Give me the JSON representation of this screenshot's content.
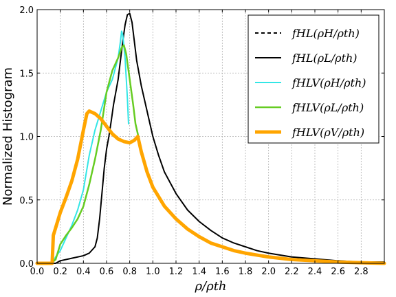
{
  "chart_data": {
    "type": "line",
    "ylabel": "Normalized Histogram",
    "xlabel": "ρ/ρth",
    "xlim": [
      0.0,
      3.0
    ],
    "ylim": [
      0.0,
      2.0
    ],
    "x_ticks": [
      "0.0",
      "0.2",
      "0.4",
      "0.6",
      "0.8",
      "1.0",
      "1.2",
      "1.4",
      "1.6",
      "1.8",
      "2.0",
      "2.2",
      "2.4",
      "2.6",
      "2.8"
    ],
    "y_ticks": [
      "0.0",
      "0.5",
      "1.0",
      "1.5",
      "2.0"
    ],
    "grid": true,
    "legend_position": "top-right",
    "series": [
      {
        "name": "fHL(ρH/ρth)",
        "color": "#000000",
        "style": "dashed",
        "width": 2,
        "points": []
      },
      {
        "name": "fHL(ρL/ρth)",
        "color": "#000000",
        "style": "solid",
        "width": 2,
        "points": [
          [
            0.12,
            0.0
          ],
          [
            0.16,
            0.0
          ],
          [
            0.2,
            0.02
          ],
          [
            0.3,
            0.04
          ],
          [
            0.4,
            0.06
          ],
          [
            0.45,
            0.08
          ],
          [
            0.5,
            0.13
          ],
          [
            0.52,
            0.2
          ],
          [
            0.54,
            0.35
          ],
          [
            0.56,
            0.55
          ],
          [
            0.58,
            0.75
          ],
          [
            0.6,
            0.9
          ],
          [
            0.62,
            1.0
          ],
          [
            0.64,
            1.12
          ],
          [
            0.66,
            1.25
          ],
          [
            0.7,
            1.45
          ],
          [
            0.72,
            1.6
          ],
          [
            0.74,
            1.75
          ],
          [
            0.76,
            1.88
          ],
          [
            0.78,
            1.96
          ],
          [
            0.8,
            1.97
          ],
          [
            0.82,
            1.9
          ],
          [
            0.84,
            1.75
          ],
          [
            0.86,
            1.6
          ],
          [
            0.9,
            1.4
          ],
          [
            0.95,
            1.2
          ],
          [
            1.0,
            1.0
          ],
          [
            1.05,
            0.85
          ],
          [
            1.1,
            0.72
          ],
          [
            1.2,
            0.55
          ],
          [
            1.3,
            0.42
          ],
          [
            1.4,
            0.33
          ],
          [
            1.5,
            0.26
          ],
          [
            1.6,
            0.2
          ],
          [
            1.7,
            0.16
          ],
          [
            1.8,
            0.13
          ],
          [
            1.9,
            0.1
          ],
          [
            2.0,
            0.08
          ],
          [
            2.2,
            0.05
          ],
          [
            2.4,
            0.035
          ],
          [
            2.6,
            0.02
          ],
          [
            2.8,
            0.01
          ],
          [
            3.0,
            0.01
          ]
        ]
      },
      {
        "name": "fHLV(ρH/ρth)",
        "color": "#33e6e6",
        "style": "solid",
        "width": 2,
        "points": [
          [
            0.13,
            0.0
          ],
          [
            0.16,
            0.05
          ],
          [
            0.2,
            0.1
          ],
          [
            0.25,
            0.2
          ],
          [
            0.3,
            0.3
          ],
          [
            0.35,
            0.42
          ],
          [
            0.4,
            0.58
          ],
          [
            0.45,
            0.85
          ],
          [
            0.5,
            1.05
          ],
          [
            0.55,
            1.2
          ],
          [
            0.6,
            1.35
          ],
          [
            0.65,
            1.45
          ],
          [
            0.7,
            1.62
          ],
          [
            0.72,
            1.75
          ],
          [
            0.73,
            1.83
          ],
          [
            0.74,
            1.8
          ],
          [
            0.76,
            1.62
          ],
          [
            0.78,
            1.3
          ],
          [
            0.79,
            1.1
          ]
        ]
      },
      {
        "name": "fHLV(ρL/ρth)",
        "color": "#66cc22",
        "style": "solid",
        "width": 2.5,
        "points": [
          [
            0.12,
            0.0
          ],
          [
            0.16,
            0.03
          ],
          [
            0.2,
            0.15
          ],
          [
            0.25,
            0.22
          ],
          [
            0.3,
            0.28
          ],
          [
            0.35,
            0.35
          ],
          [
            0.4,
            0.45
          ],
          [
            0.45,
            0.62
          ],
          [
            0.5,
            0.82
          ],
          [
            0.55,
            1.05
          ],
          [
            0.6,
            1.35
          ],
          [
            0.65,
            1.52
          ],
          [
            0.7,
            1.62
          ],
          [
            0.73,
            1.7
          ],
          [
            0.75,
            1.72
          ],
          [
            0.77,
            1.65
          ],
          [
            0.8,
            1.45
          ],
          [
            0.83,
            1.25
          ],
          [
            0.85,
            1.1
          ],
          [
            0.87,
            1.02
          ],
          [
            0.88,
            0.97
          ]
        ]
      },
      {
        "name": "fHLV(ρV/ρth)",
        "color": "#ffa500",
        "style": "solid",
        "width": 5,
        "points": [
          [
            0.0,
            0.0
          ],
          [
            0.12,
            0.0
          ],
          [
            0.13,
            0.0
          ],
          [
            0.14,
            0.22
          ],
          [
            0.16,
            0.28
          ],
          [
            0.2,
            0.4
          ],
          [
            0.25,
            0.52
          ],
          [
            0.3,
            0.65
          ],
          [
            0.35,
            0.82
          ],
          [
            0.4,
            1.05
          ],
          [
            0.43,
            1.18
          ],
          [
            0.45,
            1.2
          ],
          [
            0.5,
            1.18
          ],
          [
            0.55,
            1.14
          ],
          [
            0.6,
            1.08
          ],
          [
            0.65,
            1.02
          ],
          [
            0.7,
            0.98
          ],
          [
            0.75,
            0.96
          ],
          [
            0.8,
            0.95
          ],
          [
            0.84,
            0.97
          ],
          [
            0.87,
            1.0
          ],
          [
            0.9,
            0.88
          ],
          [
            0.95,
            0.72
          ],
          [
            1.0,
            0.6
          ],
          [
            1.1,
            0.45
          ],
          [
            1.2,
            0.35
          ],
          [
            1.3,
            0.27
          ],
          [
            1.4,
            0.21
          ],
          [
            1.5,
            0.16
          ],
          [
            1.6,
            0.13
          ],
          [
            1.7,
            0.1
          ],
          [
            1.8,
            0.08
          ],
          [
            2.0,
            0.05
          ],
          [
            2.2,
            0.03
          ],
          [
            2.4,
            0.02
          ],
          [
            2.6,
            0.01
          ],
          [
            2.8,
            0.005
          ],
          [
            3.0,
            0.0
          ]
        ]
      }
    ]
  }
}
